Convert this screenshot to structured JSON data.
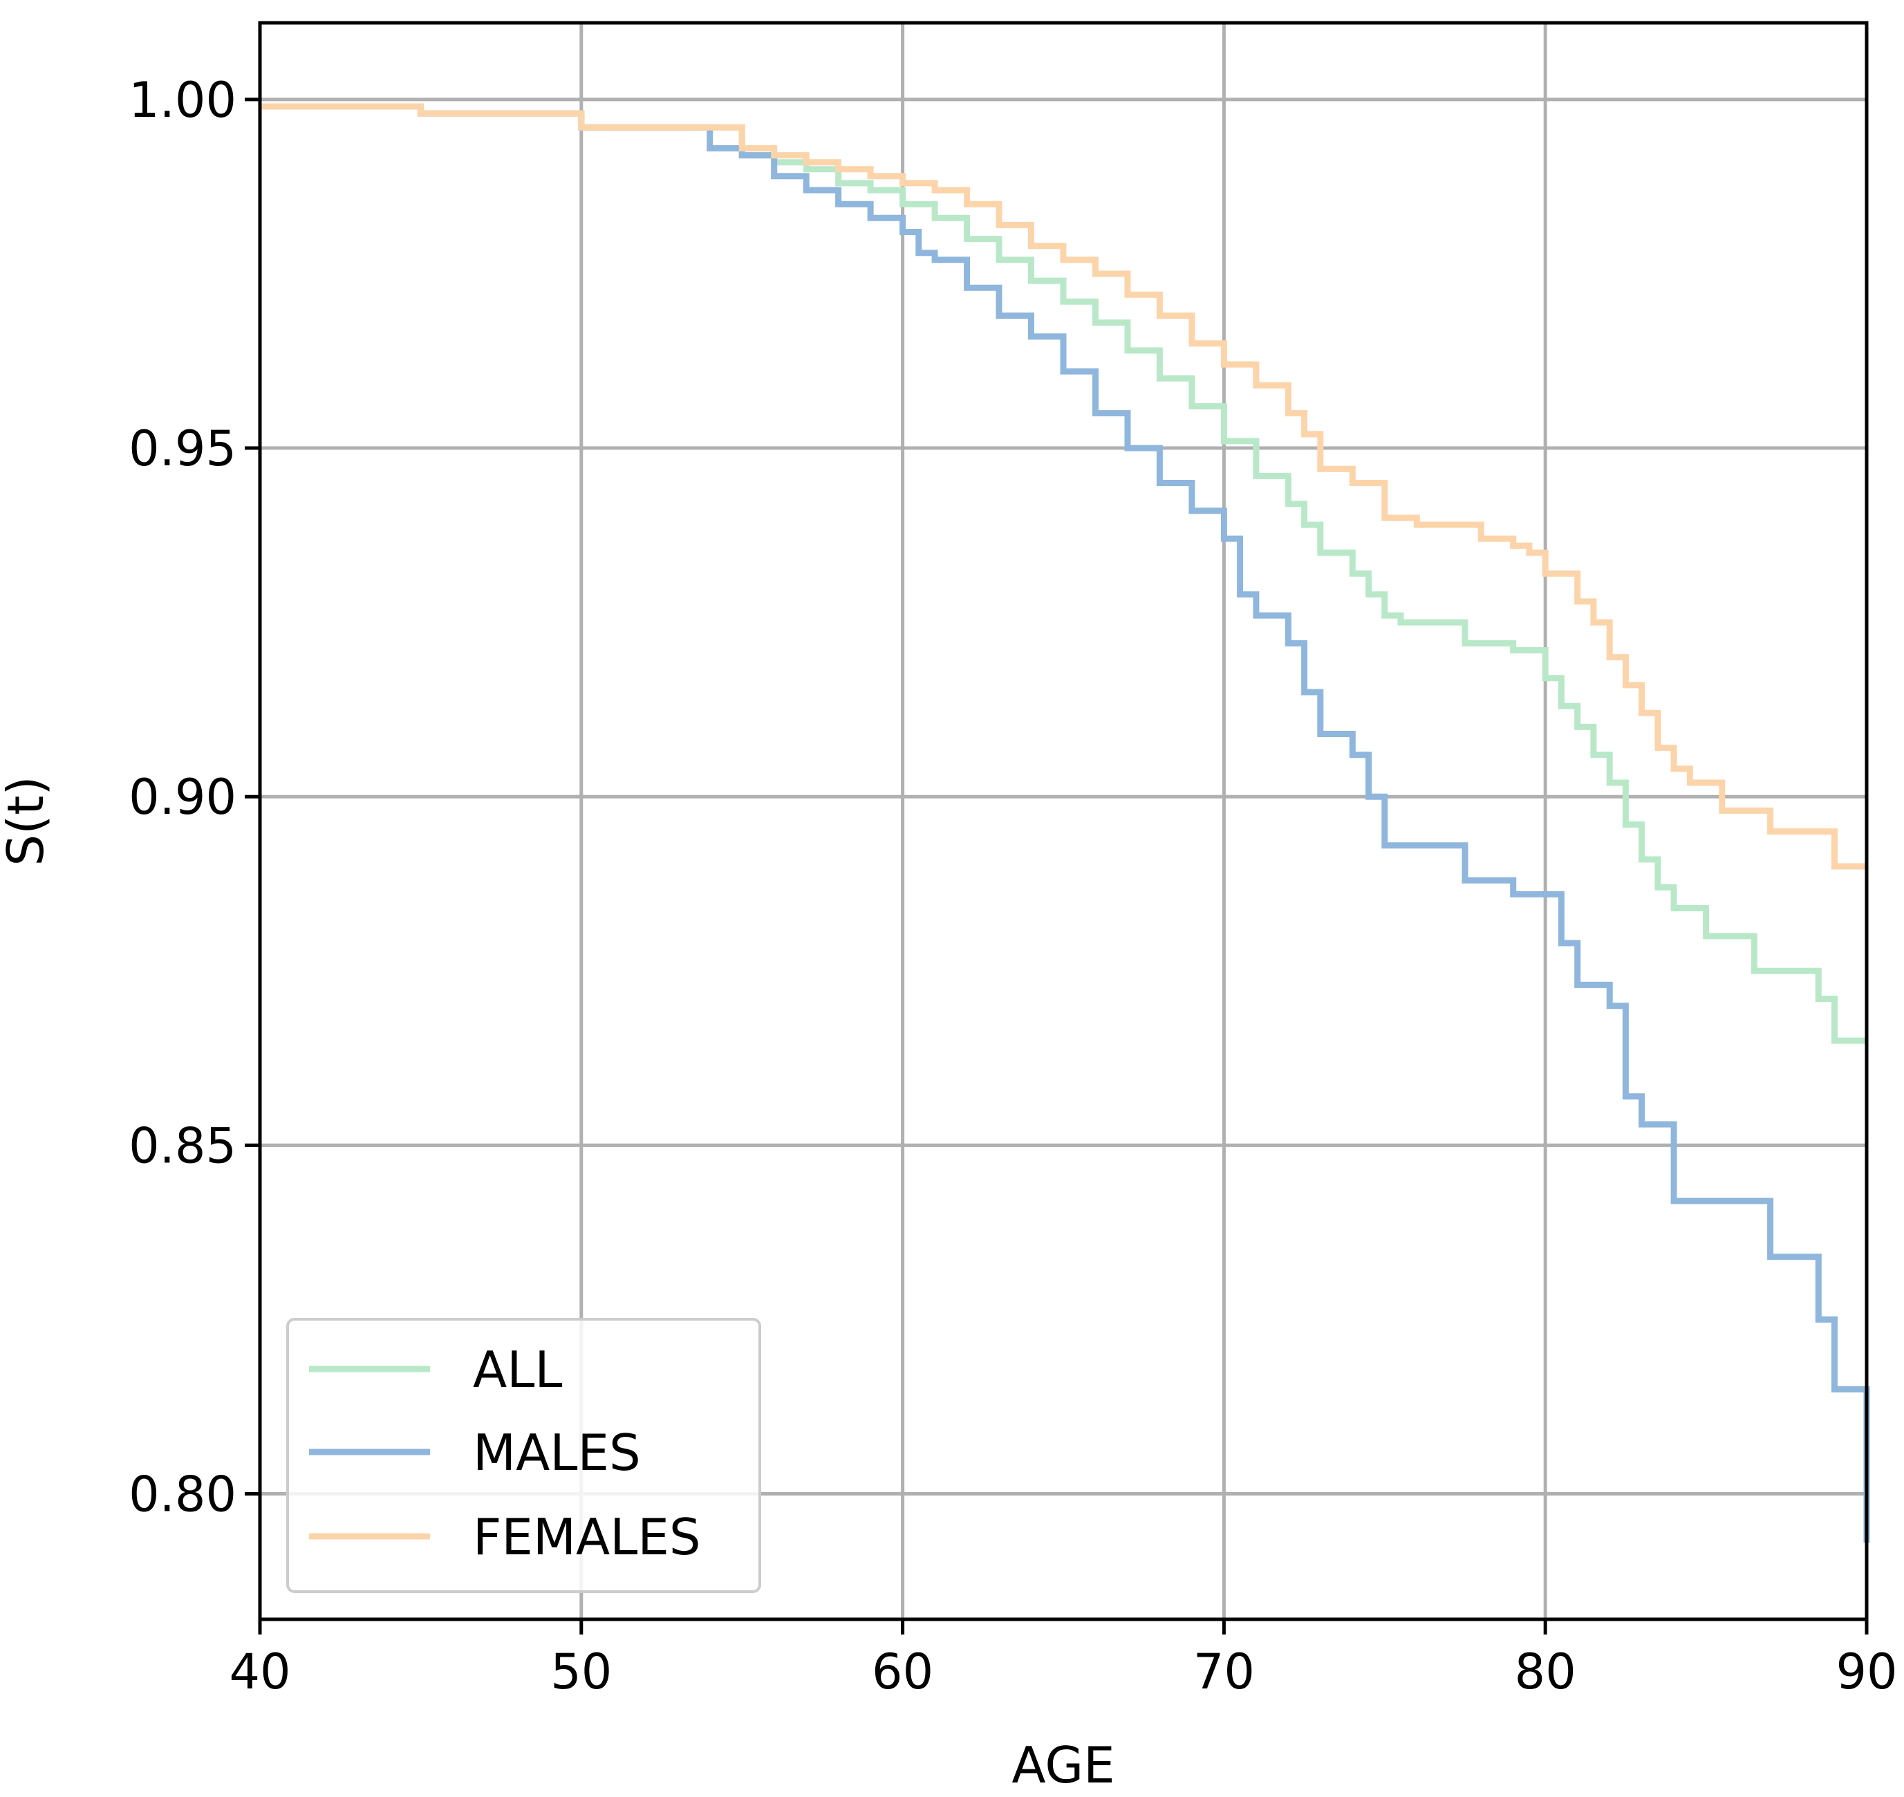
{
  "chart_data": {
    "type": "line",
    "step": true,
    "xlabel": "AGE",
    "ylabel": "S(t)",
    "xlim": [
      40,
      90
    ],
    "ylim": [
      0.782,
      1.011
    ],
    "xticks": [
      40,
      50,
      60,
      70,
      80,
      90
    ],
    "xtick_labels": [
      "40",
      "50",
      "60",
      "70",
      "80",
      "90"
    ],
    "yticks": [
      0.8,
      0.85,
      0.9,
      0.95,
      1.0
    ],
    "ytick_labels": [
      "0.80",
      "0.85",
      "0.90",
      "0.95",
      "1.00"
    ],
    "grid": true,
    "legend": {
      "position": "lower-left",
      "entries": [
        "ALL",
        "MALES",
        "FEMALES"
      ]
    },
    "series": [
      {
        "name": "ALL",
        "color": "#b9e8c9",
        "x": [
          40,
          45,
          50,
          55,
          56,
          57,
          58,
          59,
          60,
          61,
          62,
          63,
          64,
          65,
          66,
          67,
          68,
          69,
          70,
          71,
          72,
          72.5,
          73,
          74,
          74.5,
          75,
          75.5,
          77,
          77.5,
          79,
          80,
          80.5,
          81,
          81.5,
          82,
          82.5,
          83,
          83.5,
          84,
          85,
          86,
          86.5,
          88,
          88.5,
          89,
          90
        ],
        "y": [
          0.999,
          0.998,
          0.996,
          0.992,
          0.991,
          0.99,
          0.988,
          0.987,
          0.985,
          0.983,
          0.98,
          0.977,
          0.974,
          0.971,
          0.968,
          0.964,
          0.96,
          0.956,
          0.951,
          0.946,
          0.942,
          0.939,
          0.935,
          0.932,
          0.929,
          0.926,
          0.925,
          0.925,
          0.922,
          0.921,
          0.917,
          0.913,
          0.91,
          0.906,
          0.902,
          0.896,
          0.891,
          0.887,
          0.884,
          0.88,
          0.88,
          0.875,
          0.875,
          0.871,
          0.865,
          0.865
        ]
      },
      {
        "name": "MALES",
        "color": "#8fb6dc",
        "x": [
          40,
          45,
          50,
          54,
          55,
          56,
          57,
          58,
          59,
          60,
          60.5,
          61,
          62,
          63,
          64,
          65,
          66,
          67,
          68,
          69,
          70,
          70.5,
          71,
          72,
          72.5,
          73,
          74,
          74.5,
          75,
          77,
          77.5,
          79,
          80,
          80.5,
          81,
          82,
          82.5,
          83,
          84,
          85,
          86.5,
          87,
          88,
          88.5,
          89,
          90,
          90
        ],
        "y": [
          0.999,
          0.998,
          0.996,
          0.993,
          0.992,
          0.989,
          0.987,
          0.985,
          0.983,
          0.981,
          0.978,
          0.977,
          0.973,
          0.969,
          0.966,
          0.961,
          0.955,
          0.95,
          0.945,
          0.941,
          0.937,
          0.929,
          0.926,
          0.922,
          0.915,
          0.909,
          0.906,
          0.9,
          0.893,
          0.893,
          0.888,
          0.886,
          0.886,
          0.879,
          0.873,
          0.87,
          0.857,
          0.853,
          0.842,
          0.842,
          0.842,
          0.834,
          0.834,
          0.825,
          0.815,
          0.805,
          0.793
        ]
      },
      {
        "name": "FEMALES",
        "color": "#fcd4aa",
        "x": [
          40,
          45,
          50,
          55,
          56,
          57,
          58,
          59,
          60,
          61,
          62,
          63,
          64,
          65,
          66,
          67,
          68,
          69,
          70,
          71,
          72,
          72.5,
          73,
          74,
          75,
          76,
          77,
          78,
          79,
          79.5,
          80,
          81,
          81.5,
          82,
          82.5,
          83,
          83.5,
          84,
          84.5,
          85,
          85.5,
          86,
          86.5,
          87,
          88,
          89,
          90
        ],
        "y": [
          0.999,
          0.998,
          0.996,
          0.993,
          0.992,
          0.991,
          0.99,
          0.989,
          0.988,
          0.987,
          0.985,
          0.982,
          0.979,
          0.977,
          0.975,
          0.972,
          0.969,
          0.965,
          0.962,
          0.959,
          0.955,
          0.952,
          0.947,
          0.945,
          0.94,
          0.939,
          0.939,
          0.937,
          0.936,
          0.935,
          0.932,
          0.928,
          0.925,
          0.92,
          0.916,
          0.912,
          0.907,
          0.904,
          0.902,
          0.902,
          0.898,
          0.898,
          0.898,
          0.895,
          0.895,
          0.89,
          0.89
        ]
      }
    ]
  }
}
